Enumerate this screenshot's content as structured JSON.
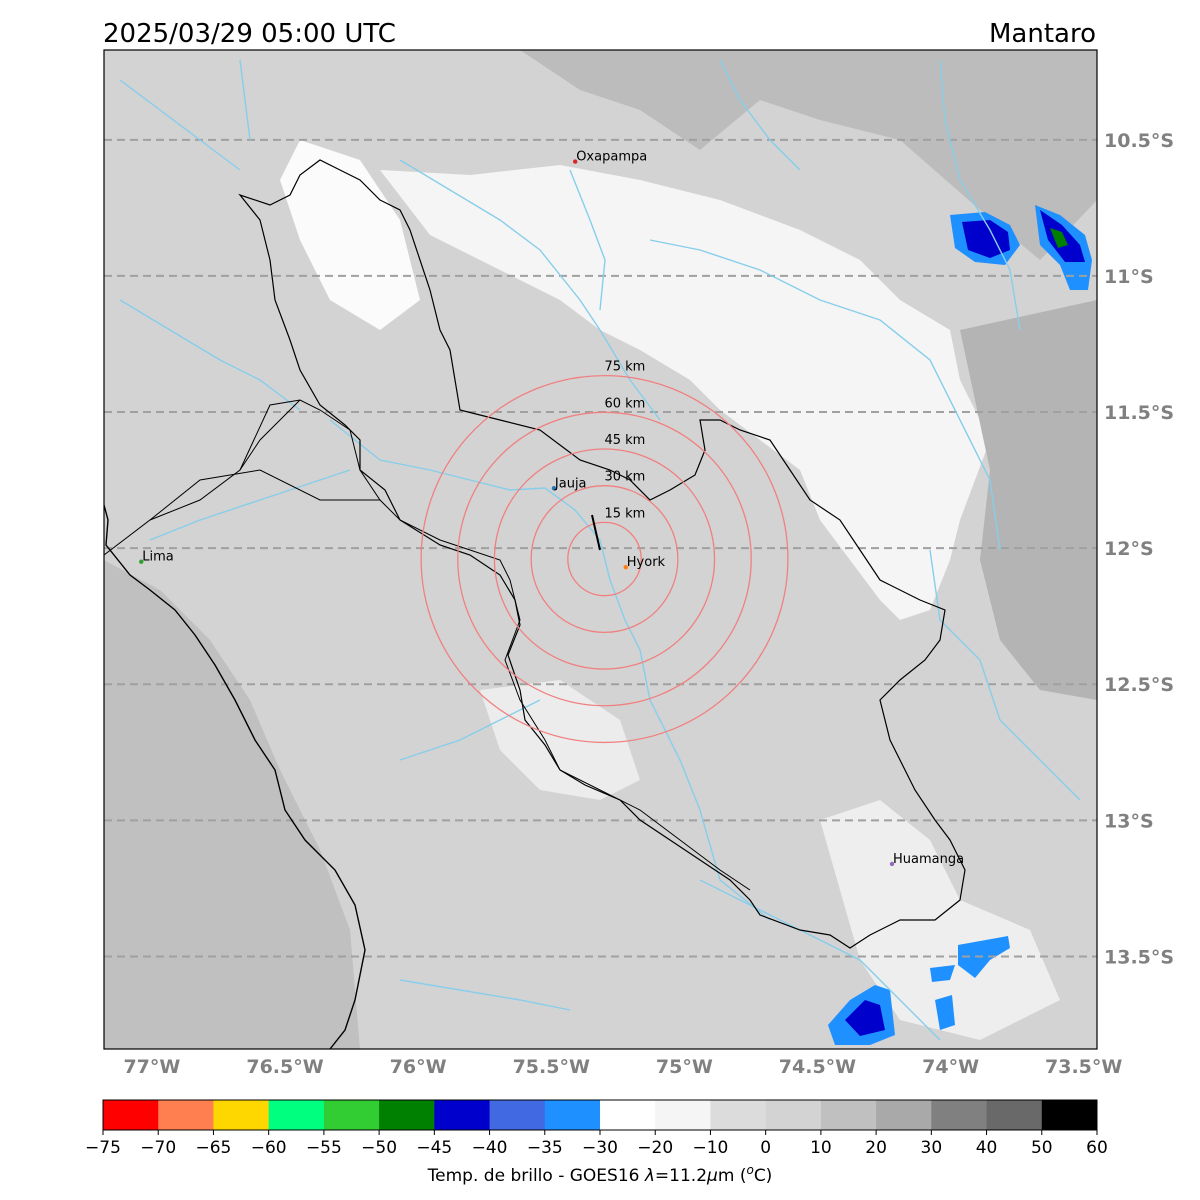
{
  "header": {
    "datetime": "2025/03/29 05:00 UTC",
    "basin": "Mantaro"
  },
  "map": {
    "lon_range": [
      -77.18,
      -73.45
    ],
    "lat_range": [
      -13.84,
      -10.17
    ],
    "lon_ticks": [
      {
        "value": -77.0,
        "label": "77°W"
      },
      {
        "value": -76.5,
        "label": "76.5°W"
      },
      {
        "value": -76.0,
        "label": "76°W"
      },
      {
        "value": -75.5,
        "label": "75.5°W"
      },
      {
        "value": -75.0,
        "label": "75°W"
      },
      {
        "value": -74.5,
        "label": "74.5°W"
      },
      {
        "value": -74.0,
        "label": "74°W"
      },
      {
        "value": -73.5,
        "label": "73.5°W"
      }
    ],
    "lat_ticks": [
      {
        "value": -10.5,
        "label": "10.5°S"
      },
      {
        "value": -11.0,
        "label": "11°S"
      },
      {
        "value": -11.5,
        "label": "11.5°S"
      },
      {
        "value": -12.0,
        "label": "12°S"
      },
      {
        "value": -12.5,
        "label": "12.5°S"
      },
      {
        "value": -13.0,
        "label": "13°S"
      },
      {
        "value": -13.5,
        "label": "13.5°S"
      }
    ],
    "cities": [
      {
        "name": "Oxapampa",
        "lon": -75.41,
        "lat": -10.58,
        "color": "#d62728"
      },
      {
        "name": "Jauja",
        "lon": -75.49,
        "lat": -11.78,
        "color": "#1f77b4"
      },
      {
        "name": "Hyork",
        "lon": -75.22,
        "lat": -12.07,
        "color": "#ff7f0e"
      },
      {
        "name": "Lima",
        "lon": -77.04,
        "lat": -12.05,
        "color": "#2ca02c"
      },
      {
        "name": "Huamanga",
        "lon": -74.22,
        "lat": -13.16,
        "color": "#9467bd"
      }
    ],
    "range_rings": {
      "center_lon": -75.3,
      "center_lat": -12.04,
      "color": "#f08080",
      "rings": [
        {
          "km": 15,
          "label": "15 km"
        },
        {
          "km": 30,
          "label": "30 km"
        },
        {
          "km": 45,
          "label": "45 km"
        },
        {
          "km": 60,
          "label": "60 km"
        },
        {
          "km": 75,
          "label": "75 km"
        }
      ]
    }
  },
  "colorbar": {
    "label_prefix": "Temp. de brillo - GOES16 ",
    "label_lambda": "λ",
    "label_mid": "=11.2",
    "label_mu": "μ",
    "label_end": "m (",
    "label_sup": "o",
    "label_close": "C)",
    "bins": [
      {
        "from": -75,
        "to": -70,
        "color": "#ff0000"
      },
      {
        "from": -70,
        "to": -65,
        "color": "#ff7f50"
      },
      {
        "from": -65,
        "to": -60,
        "color": "#ffd700"
      },
      {
        "from": -60,
        "to": -55,
        "color": "#00ff7f"
      },
      {
        "from": -55,
        "to": -50,
        "color": "#32cd32"
      },
      {
        "from": -50,
        "to": -45,
        "color": "#008000"
      },
      {
        "from": -45,
        "to": -40,
        "color": "#0000cd"
      },
      {
        "from": -40,
        "to": -35,
        "color": "#4169e1"
      },
      {
        "from": -35,
        "to": -30,
        "color": "#1e90ff"
      },
      {
        "from": -30,
        "to": -20,
        "color": "#ffffff"
      },
      {
        "from": -20,
        "to": -10,
        "color": "#f5f5f5"
      },
      {
        "from": -10,
        "to": 0,
        "color": "#dcdcdc"
      },
      {
        "from": 0,
        "to": 10,
        "color": "#d3d3d3"
      },
      {
        "from": 10,
        "to": 20,
        "color": "#c0c0c0"
      },
      {
        "from": 20,
        "to": 30,
        "color": "#a9a9a9"
      },
      {
        "from": 30,
        "to": 40,
        "color": "#808080"
      },
      {
        "from": 40,
        "to": 50,
        "color": "#696969"
      },
      {
        "from": 50,
        "to": 60,
        "color": "#000000"
      }
    ],
    "tick_labels": [
      "−75",
      "−70",
      "−65",
      "−60",
      "−55",
      "−50",
      "−45",
      "−40",
      "−35",
      "−30",
      "−20",
      "−10",
      "0",
      "10",
      "20",
      "30",
      "40",
      "50",
      "60"
    ]
  }
}
